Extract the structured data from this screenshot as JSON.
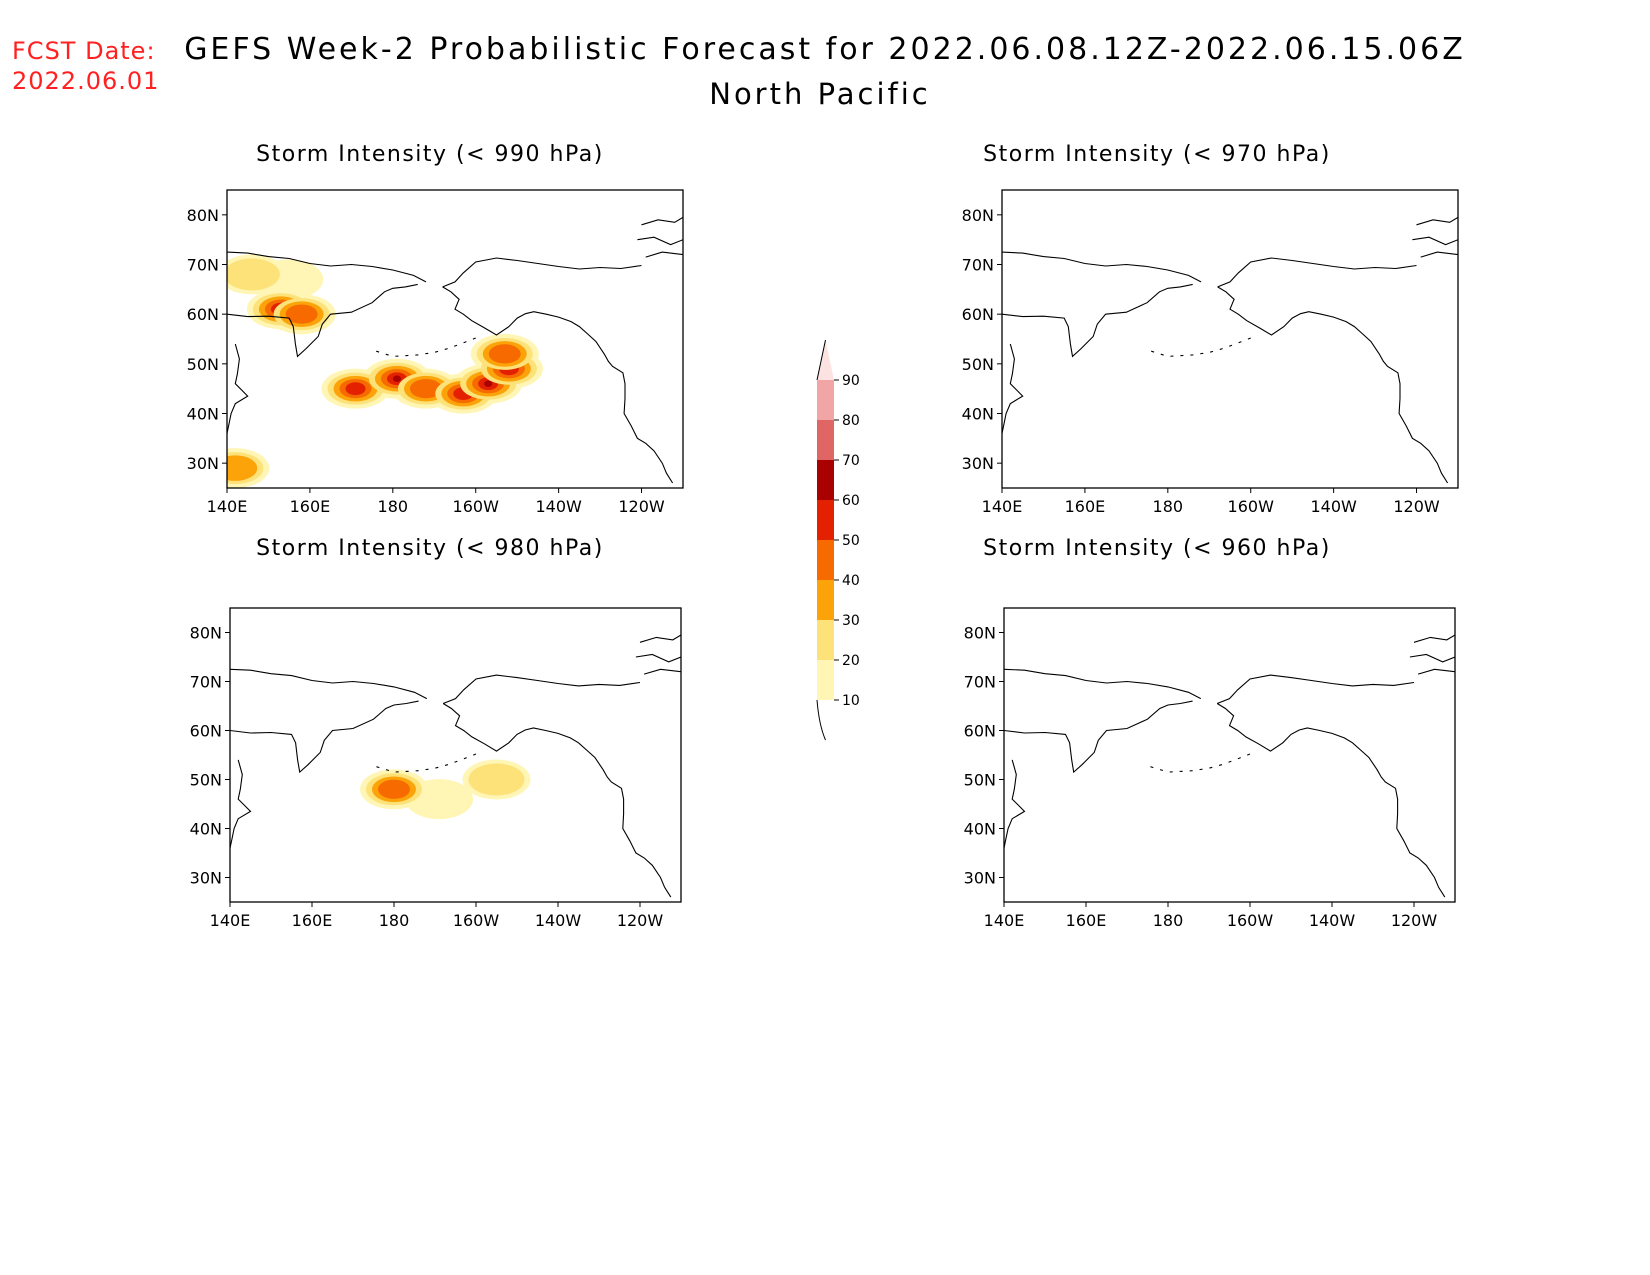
{
  "header": {
    "fcst_label": "FCST Date:",
    "fcst_date": "2022.06.01",
    "title": "GEFS Week-2 Probabilistic Forecast for 2022.06.08.12Z-2022.06.15.06Z",
    "subtitle": "North Pacific"
  },
  "panels": [
    {
      "id": "p990",
      "title": "Storm Intensity (< 990 hPa)"
    },
    {
      "id": "p970",
      "title": "Storm Intensity (< 970 hPa)"
    },
    {
      "id": "p980",
      "title": "Storm Intensity (< 980 hPa)"
    },
    {
      "id": "p960",
      "title": "Storm Intensity (< 960 hPa)"
    }
  ],
  "axes": {
    "lat_labels": [
      "80N",
      "70N",
      "60N",
      "50N",
      "40N",
      "30N"
    ],
    "lat_values": [
      80,
      70,
      60,
      50,
      40,
      30
    ],
    "lon_labels": [
      "140E",
      "160E",
      "180",
      "160W",
      "140W",
      "120W"
    ],
    "lon_values": [
      140,
      160,
      180,
      200,
      220,
      240
    ],
    "lat_range": [
      25,
      85
    ],
    "lon_range": [
      140,
      250
    ]
  },
  "colorbar": {
    "levels": [
      "10",
      "20",
      "30",
      "40",
      "50",
      "60",
      "70",
      "80",
      "90"
    ],
    "colors": [
      "#fff5b4",
      "#fde27a",
      "#fca30a",
      "#f66a00",
      "#e32000",
      "#a90000",
      "#e06565",
      "#f2a5a5",
      "#fde2e2"
    ]
  },
  "map_data": {
    "p990": [
      {
        "lat": 68,
        "lon": 146,
        "prob": 20
      },
      {
        "lat": 67,
        "lon": 155,
        "prob": 15
      },
      {
        "lat": 61,
        "lon": 153,
        "prob": 50
      },
      {
        "lat": 60,
        "lon": 158,
        "prob": 40
      },
      {
        "lat": 45,
        "lon": 171,
        "prob": 50
      },
      {
        "lat": 47,
        "lon": 181,
        "prob": 60
      },
      {
        "lat": 45,
        "lon": 188,
        "prob": 40
      },
      {
        "lat": 44,
        "lon": 197,
        "prob": 50
      },
      {
        "lat": 46,
        "lon": 203,
        "prob": 60
      },
      {
        "lat": 49,
        "lon": 208,
        "prob": 50
      },
      {
        "lat": 52,
        "lon": 207,
        "prob": 40
      },
      {
        "lat": 29,
        "lon": 142,
        "prob": 30
      }
    ],
    "p980": [
      {
        "lat": 50,
        "lon": 205,
        "prob": 20
      },
      {
        "lat": 48,
        "lon": 180,
        "prob": 40
      },
      {
        "lat": 46,
        "lon": 191,
        "prob": 10
      }
    ],
    "p970": [],
    "p960": []
  }
}
